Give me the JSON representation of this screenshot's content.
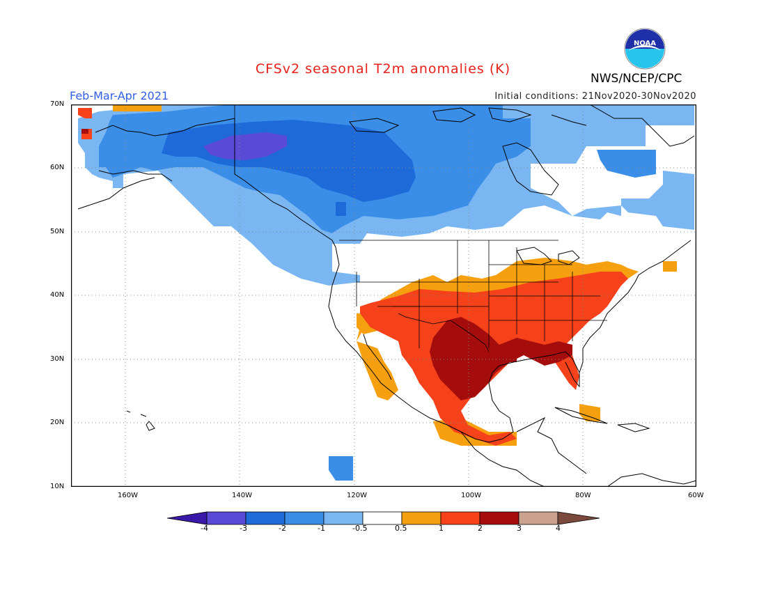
{
  "header": {
    "title": "CFSv2 seasonal T2m anomalies (K)",
    "period": "Feb-Mar-Apr 2021",
    "initial_conditions": "Initial conditions: 21Nov2020-30Nov2020",
    "agency": "NWS/NCEP/CPC",
    "logo_text": "NOAA"
  },
  "axes": {
    "lat_labels": [
      "70N",
      "60N",
      "50N",
      "40N",
      "30N",
      "20N",
      "10N"
    ],
    "lon_labels": [
      "160W",
      "140W",
      "120W",
      "100W",
      "80W",
      "60W"
    ]
  },
  "colorbar": {
    "ticks": [
      "-4",
      "-3",
      "-2",
      "-1",
      "-0.5",
      "0.5",
      "1",
      "2",
      "3",
      "4"
    ],
    "colors": [
      "#3a18a8",
      "#5a4ad6",
      "#1e6ad8",
      "#3a8ee8",
      "#79b6f2",
      "#ffffff",
      "#f6a010",
      "#f5421b",
      "#a50c0c",
      "#c9a18c",
      "#7a4a3c"
    ]
  }
}
